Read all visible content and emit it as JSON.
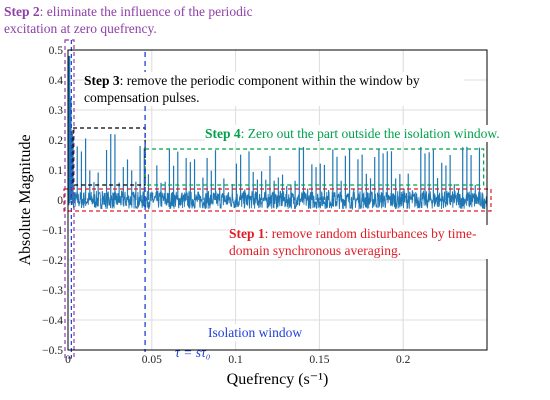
{
  "chart_data": {
    "type": "line",
    "xlabel": "Quefrency (s⁻¹)",
    "ylabel": "Absolute Magnitude",
    "xlim": [
      0,
      0.25
    ],
    "ylim": [
      -0.5,
      0.5
    ],
    "x_ticks": [
      0,
      0.05,
      0.1,
      0.15,
      0.2
    ],
    "x_tick_labels": [
      "0",
      "0.05",
      "0.1",
      "0.15",
      "0.2"
    ],
    "y_ticks": [
      -0.5,
      -0.4,
      -0.3,
      -0.2,
      -0.1,
      0,
      0.1,
      0.2,
      0.3,
      0.4,
      0.5
    ],
    "y_tick_labels": [
      "−0.5",
      "−0.4",
      "−0.3",
      "−0.2",
      "−0.1",
      "0",
      "0.1",
      "0.2",
      "0.3",
      "0.4",
      "0.5"
    ],
    "grid": true,
    "series": [
      {
        "color": "#1f77b4",
        "peaks": [
          {
            "x": 0.0008,
            "y": 0.48
          },
          {
            "x": 0.0016,
            "y": 0.34
          },
          {
            "x": 0.0024,
            "y": 0.22
          }
        ],
        "pulse_band": {
          "x_start": 0.003,
          "x_end": 0.248,
          "y_min": 0.02,
          "y_max": 0.22
        },
        "noise_band": {
          "y_min": -0.03,
          "y_max": 0.03
        }
      }
    ],
    "annotations": {
      "step1": {
        "title": "Step 1",
        "text": ": remove random disturbances by time-domain synchronous averaging.",
        "color": "#e01b24",
        "box_y": [
          -0.03,
          0.03
        ]
      },
      "step2": {
        "title": "Step 2",
        "text": ": eliminate the influence of the periodic excitation at zero quefrency.",
        "color": "#8e3fa8",
        "box_x": [
          -0.001,
          0.002
        ]
      },
      "step3": {
        "title": "Step 3",
        "text": ": remove the periodic component within the window by compensation pulses.",
        "color": "#000000",
        "box_x": [
          0.003,
          0.046
        ],
        "box_y": [
          0.05,
          0.24
        ]
      },
      "step4": {
        "title": "Step 4",
        "text": ": Zero out the part outside the isolation window.",
        "color": "#00a14b",
        "box_x": [
          0.046,
          0.248
        ],
        "box_y": [
          0.05,
          0.17
        ]
      },
      "isolation": {
        "text": "Isolation window",
        "color": "#1f3fd6",
        "x": 0.046
      },
      "tau": {
        "text": "τ = sτ₀",
        "color": "#1f3fd6"
      }
    }
  }
}
